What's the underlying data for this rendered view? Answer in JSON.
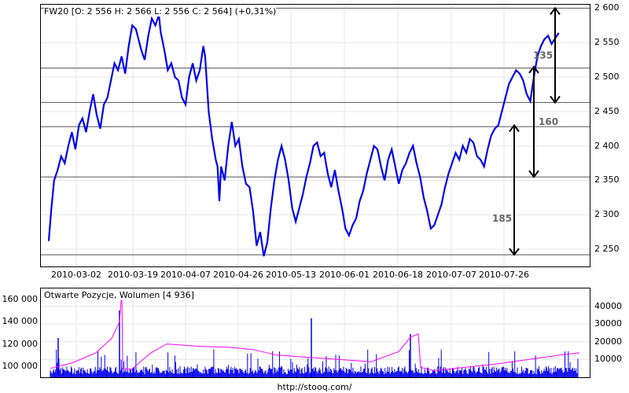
{
  "footer": {
    "url": "http://stooq.com/"
  },
  "chart_data": [
    {
      "type": "line",
      "title": "FW20 [O: 2 556  H: 2 566  L: 2 556  C: 2 564] (+0,31%)",
      "x_ticks": [
        "2010-03-02",
        "2010-03-19",
        "2010-04-07",
        "2010-04-26",
        "2010-05-13",
        "2010-06-01",
        "2010-06-18",
        "2010-07-07",
        "2010-07-26"
      ],
      "y_ticks": [
        "2 600",
        "2 550",
        "2 500",
        "2 450",
        "2 400",
        "2 350",
        "2 300",
        "2 250"
      ],
      "ylim": [
        2225,
        2605
      ],
      "grid": true,
      "series": [
        {
          "color": "#0000ee",
          "points": [
            [
              0,
              2262
            ],
            [
              3,
              2310
            ],
            [
              6,
              2350
            ],
            [
              10,
              2365
            ],
            [
              14,
              2385
            ],
            [
              18,
              2375
            ],
            [
              22,
              2400
            ],
            [
              26,
              2420
            ],
            [
              30,
              2395
            ],
            [
              34,
              2430
            ],
            [
              38,
              2440
            ],
            [
              42,
              2420
            ],
            [
              46,
              2450
            ],
            [
              50,
              2475
            ],
            [
              54,
              2445
            ],
            [
              58,
              2425
            ],
            [
              62,
              2460
            ],
            [
              66,
              2470
            ],
            [
              70,
              2495
            ],
            [
              74,
              2520
            ],
            [
              78,
              2510
            ],
            [
              82,
              2530
            ],
            [
              86,
              2505
            ],
            [
              90,
              2545
            ],
            [
              94,
              2575
            ],
            [
              98,
              2570
            ],
            [
              100,
              2560
            ],
            [
              104,
              2540
            ],
            [
              108,
              2525
            ],
            [
              112,
              2560
            ],
            [
              116,
              2585
            ],
            [
              120,
              2575
            ],
            [
              124,
              2590
            ],
            [
              126,
              2565
            ],
            [
              130,
              2540
            ],
            [
              134,
              2510
            ],
            [
              138,
              2520
            ],
            [
              142,
              2500
            ],
            [
              146,
              2495
            ],
            [
              150,
              2470
            ],
            [
              154,
              2460
            ],
            [
              158,
              2500
            ],
            [
              162,
              2520
            ],
            [
              166,
              2495
            ],
            [
              170,
              2510
            ],
            [
              174,
              2545
            ],
            [
              176,
              2530
            ],
            [
              180,
              2450
            ],
            [
              184,
              2410
            ],
            [
              188,
              2380
            ],
            [
              190,
              2370
            ],
            [
              192,
              2320
            ],
            [
              194,
              2370
            ],
            [
              198,
              2350
            ],
            [
              202,
              2400
            ],
            [
              206,
              2435
            ],
            [
              210,
              2400
            ],
            [
              214,
              2410
            ],
            [
              218,
              2370
            ],
            [
              222,
              2345
            ],
            [
              226,
              2340
            ],
            [
              230,
              2305
            ],
            [
              234,
              2255
            ],
            [
              238,
              2275
            ],
            [
              242,
              2240
            ],
            [
              246,
              2260
            ],
            [
              250,
              2310
            ],
            [
              254,
              2350
            ],
            [
              258,
              2380
            ],
            [
              262,
              2400
            ],
            [
              266,
              2380
            ],
            [
              270,
              2350
            ],
            [
              274,
              2310
            ],
            [
              278,
              2290
            ],
            [
              282,
              2310
            ],
            [
              286,
              2330
            ],
            [
              290,
              2355
            ],
            [
              294,
              2375
            ],
            [
              298,
              2400
            ],
            [
              302,
              2405
            ],
            [
              306,
              2385
            ],
            [
              310,
              2390
            ],
            [
              314,
              2360
            ],
            [
              318,
              2340
            ],
            [
              322,
              2365
            ],
            [
              326,
              2335
            ],
            [
              330,
              2310
            ],
            [
              334,
              2280
            ],
            [
              338,
              2270
            ],
            [
              342,
              2285
            ],
            [
              346,
              2295
            ],
            [
              350,
              2320
            ],
            [
              354,
              2335
            ],
            [
              358,
              2360
            ],
            [
              362,
              2380
            ],
            [
              366,
              2400
            ],
            [
              370,
              2395
            ],
            [
              374,
              2370
            ],
            [
              378,
              2350
            ],
            [
              382,
              2380
            ],
            [
              386,
              2395
            ],
            [
              390,
              2370
            ],
            [
              394,
              2345
            ],
            [
              398,
              2365
            ],
            [
              402,
              2375
            ],
            [
              406,
              2390
            ],
            [
              410,
              2400
            ],
            [
              414,
              2375
            ],
            [
              418,
              2355
            ],
            [
              422,
              2325
            ],
            [
              426,
              2305
            ],
            [
              430,
              2280
            ],
            [
              434,
              2285
            ],
            [
              438,
              2300
            ],
            [
              442,
              2315
            ],
            [
              446,
              2340
            ],
            [
              450,
              2360
            ],
            [
              454,
              2375
            ],
            [
              458,
              2390
            ],
            [
              462,
              2380
            ],
            [
              466,
              2400
            ],
            [
              470,
              2390
            ],
            [
              474,
              2410
            ],
            [
              478,
              2405
            ],
            [
              482,
              2385
            ],
            [
              486,
              2380
            ],
            [
              490,
              2370
            ],
            [
              494,
              2395
            ],
            [
              498,
              2415
            ],
            [
              502,
              2425
            ],
            [
              506,
              2430
            ],
            [
              510,
              2450
            ],
            [
              514,
              2470
            ],
            [
              518,
              2490
            ],
            [
              522,
              2500
            ],
            [
              526,
              2510
            ],
            [
              530,
              2505
            ],
            [
              534,
              2495
            ],
            [
              538,
              2475
            ],
            [
              542,
              2465
            ],
            [
              546,
              2500
            ],
            [
              550,
              2530
            ],
            [
              554,
              2545
            ],
            [
              558,
              2555
            ],
            [
              562,
              2560
            ],
            [
              566,
              2548
            ],
            [
              570,
              2556
            ],
            [
              574,
              2564
            ]
          ],
          "x_range": [
            0,
            600
          ]
        }
      ],
      "annotations": [
        {
          "label": "185",
          "from": 2242,
          "to": 2430,
          "x": 507
        },
        {
          "label": "160",
          "from": 2355,
          "to": 2515,
          "x": 532
        },
        {
          "label": "135",
          "from": 2463,
          "to": 2600,
          "x": 559
        }
      ],
      "hlines": [
        2242,
        2355,
        2428,
        2463,
        2513,
        2600
      ]
    },
    {
      "type": "bar",
      "title": "Otwarte Pozycje, Wolumen [4 936]",
      "left_ticks": [
        "160 000",
        "140 000",
        "120 000",
        "100 000"
      ],
      "right_ticks": [
        "40000",
        "30000",
        "20000",
        "10000"
      ],
      "left_range": [
        90000,
        170000
      ],
      "right_range": [
        0,
        50000
      ],
      "series": [
        {
          "name": "",
          "color": "#0000ee",
          "kind": "bars"
        },
        {
          "name": "",
          "color": "#ff00ff",
          "kind": "line"
        }
      ]
    }
  ]
}
